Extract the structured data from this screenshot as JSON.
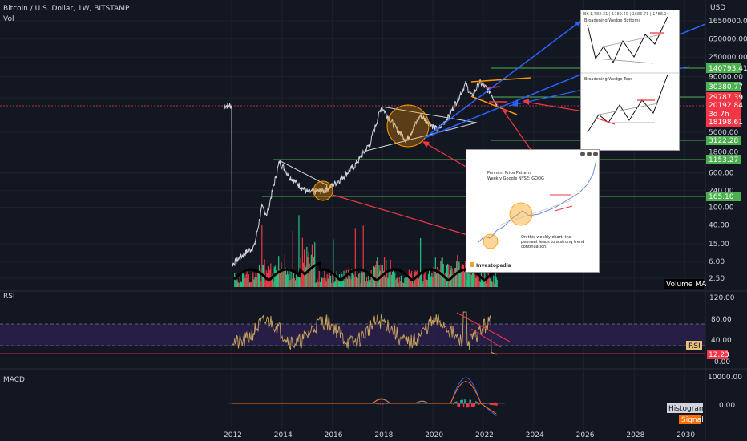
{
  "header": {
    "title": "Bitcoin / U.S. Dollar, 1W, BITSTAMP",
    "vol_label": "Vol",
    "rsi_label": "RSI",
    "macd_label": "MACD",
    "currency": "USD"
  },
  "price_axis": {
    "ticks": [
      "1650000.00",
      "650000.00",
      "250000.00",
      "90000.00",
      "30000.00",
      "5000.00",
      "1800.00",
      "600.00",
      "240.00",
      "100.00",
      "40.00",
      "15.00",
      "6.00",
      "2.50"
    ],
    "scale": "log"
  },
  "price_tags": [
    {
      "label": "140793.41",
      "color": "#4caf50"
    },
    {
      "label": "30380.77",
      "color": "#4caf50"
    },
    {
      "label": "29787.39",
      "color": "#f23645"
    },
    {
      "label": "20192.84",
      "color": "#f23645"
    },
    {
      "label": "3d 7h",
      "color": "#f23645"
    },
    {
      "label": "18198.61",
      "color": "#f23645"
    },
    {
      "label": "3122.28",
      "color": "#4caf50"
    },
    {
      "label": "1153.27",
      "color": "#4caf50"
    },
    {
      "label": "165.10",
      "color": "#4caf50"
    }
  ],
  "volume_ma_label": "Volume MA",
  "rsi_axis": {
    "ticks": [
      "120.00",
      "80.00",
      "40.00",
      "0.00"
    ],
    "tag": "RSI",
    "value_tag": "12.23"
  },
  "macd_axis": {
    "ticks": [
      "10000.00",
      "0.00"
    ],
    "histogram_tag": "Histogram",
    "signal_tag": "Signal"
  },
  "time_axis": {
    "ticks": [
      "2012",
      "2014",
      "2016",
      "2018",
      "2020",
      "2022",
      "2024",
      "2026",
      "2028",
      "2030"
    ]
  },
  "inset_top": {
    "title_top": "Broadening Wedge Bottoms",
    "title_bottom": "Broadening Wedge Tops",
    "header_text": "BK-1,782.31 | 1789.40 | 1686.71 | 1788.14"
  },
  "inset_pennant": {
    "title": "Pennant Price Pattern",
    "subtitle": "Weekly Google NYSE: GOOG",
    "caption": "On this weekly chart, the pennant leads to a strong trend continuation.",
    "brand": "Investopedia"
  },
  "colors": {
    "background": "#131722",
    "grid": "#1e222d",
    "candle": "#d1d4dc",
    "green": "#4caf50",
    "red": "#f23645",
    "blue": "#2962ff",
    "orange": "#ff9800",
    "rsi_band": "#2a1f4a",
    "rsi_line": "#c9a45c"
  },
  "chart_data": [
    {
      "type": "line",
      "title": "Bitcoin / U.S. Dollar, 1W, BITSTAMP",
      "scale": "log",
      "x": [
        "2012",
        "2013",
        "2013.5",
        "2014",
        "2015",
        "2016",
        "2017",
        "2017.5",
        "2018",
        "2019",
        "2019.5",
        "2020",
        "2020.5",
        "2021",
        "2021.5",
        "2021.9",
        "2022",
        "2022.5"
      ],
      "series": [
        {
          "values": [
            5,
            15,
            100,
            900,
            280,
            400,
            1000,
            3000,
            18000,
            3500,
            12000,
            7000,
            9000,
            40000,
            33000,
            65000,
            45000,
            20000
          ]
        }
      ],
      "ylim": [
        2.5,
        1650000
      ],
      "xlim": [
        2011.7,
        2030
      ]
    },
    {
      "type": "line",
      "title": "RSI",
      "ylim": [
        0,
        120
      ],
      "band": [
        30,
        70
      ],
      "last_value": 12.23
    },
    {
      "type": "line",
      "title": "MACD",
      "ylim": [
        -3000,
        12000
      ]
    }
  ]
}
